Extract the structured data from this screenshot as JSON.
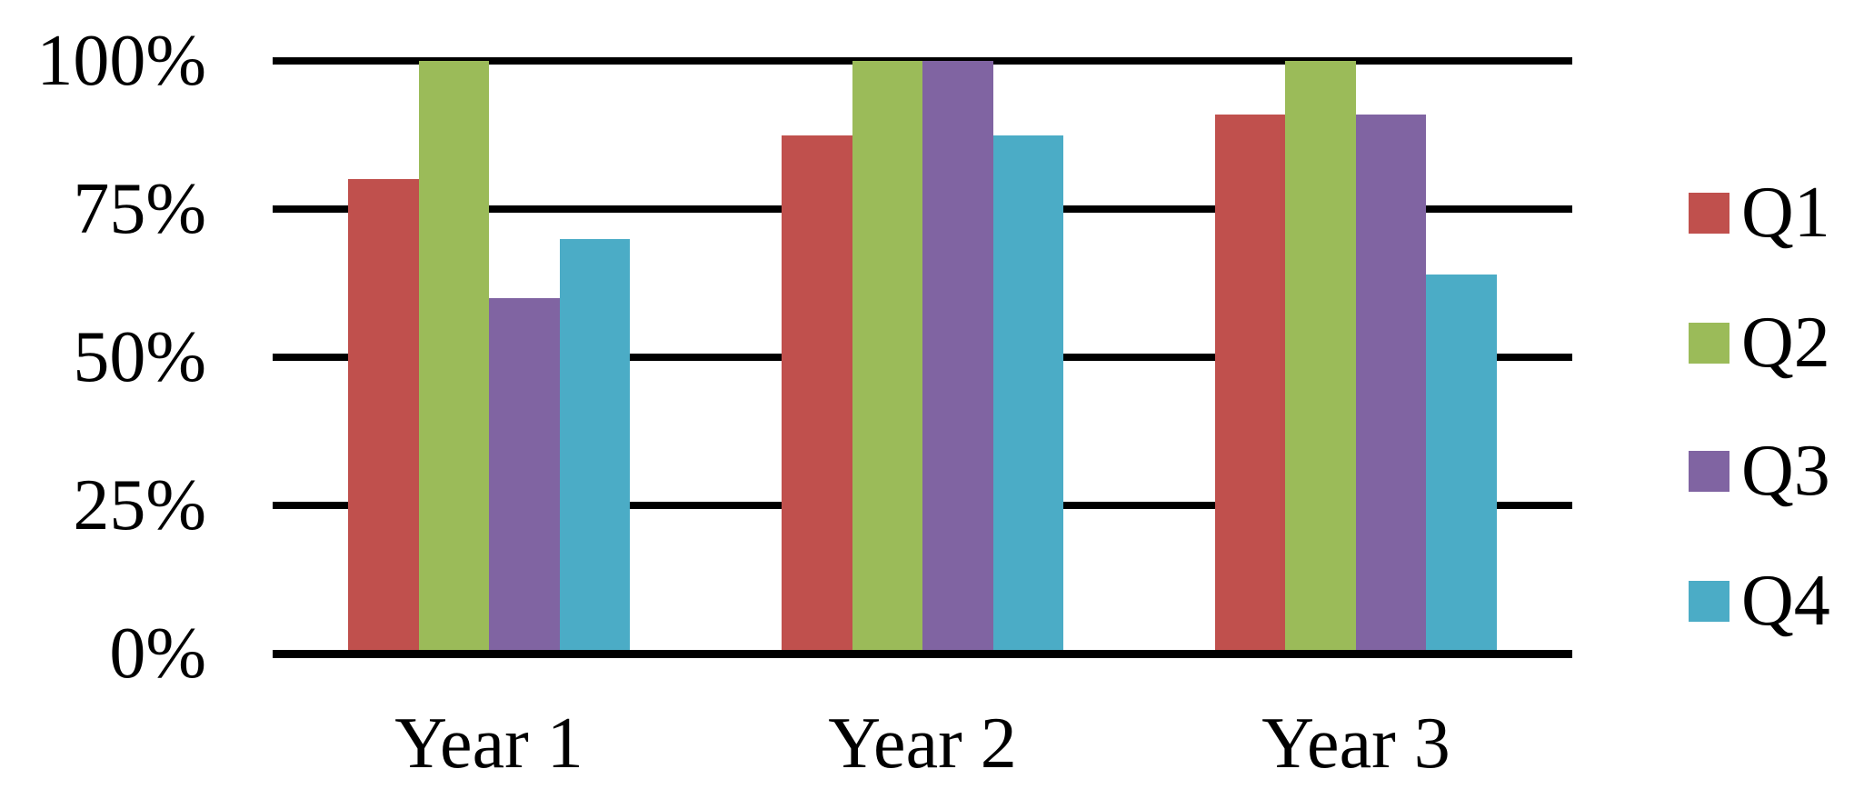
{
  "chart_data": {
    "type": "bar",
    "title": "",
    "categories": [
      "Year 1",
      "Year 2",
      "Year 3"
    ],
    "series": [
      {
        "name": "Q1",
        "color": "#C0504D",
        "values": [
          80,
          87.5,
          91
        ]
      },
      {
        "name": "Q2",
        "color": "#9BBB59",
        "values": [
          100,
          100,
          100
        ]
      },
      {
        "name": "Q3",
        "color": "#8064A2",
        "values": [
          60,
          100,
          91
        ]
      },
      {
        "name": "Q4",
        "color": "#4BACC6",
        "values": [
          70,
          87.5,
          64
        ]
      }
    ],
    "y_axis": {
      "unit": "%",
      "min": 0,
      "max": 100,
      "ticks": [
        100,
        75,
        50,
        25,
        0
      ],
      "tick_labels": [
        "100%",
        "75%",
        "50%",
        "25%",
        "0%"
      ]
    },
    "x_axis": {
      "tick_labels": [
        "Year 1",
        "Year 2",
        "Year 3"
      ]
    },
    "legend": {
      "position": "right",
      "entries": [
        "Q1",
        "Q2",
        "Q3",
        "Q4"
      ]
    },
    "grid": true,
    "colors": {
      "grid_color": "#000000",
      "text_color": "#000000",
      "background": "#FFFFFF"
    }
  }
}
